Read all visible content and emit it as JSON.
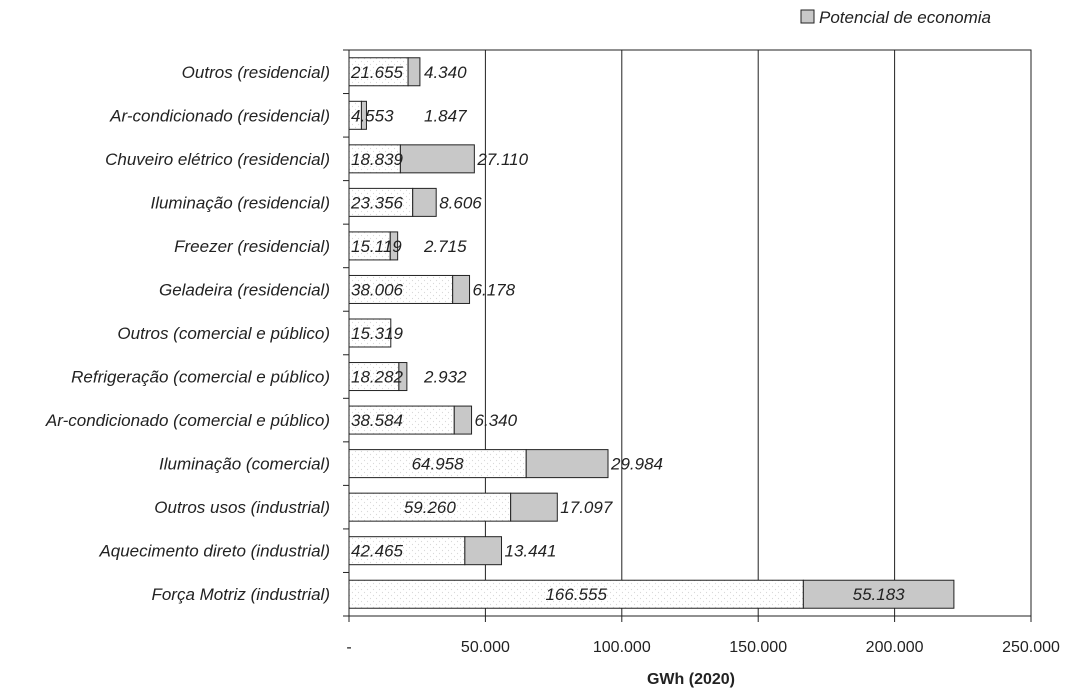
{
  "chart_data": {
    "type": "bar",
    "orientation": "horizontal",
    "stacked": true,
    "title": "",
    "xlabel": "GWh (2020)",
    "ylabel": "",
    "xlim": [
      0,
      250000
    ],
    "x_ticks": [
      0,
      50000,
      100000,
      150000,
      200000,
      250000
    ],
    "x_tick_labels": [
      "-",
      "50.000",
      "100.000",
      "150.000",
      "200.000",
      "250.000"
    ],
    "grid": "vertical major gridlines",
    "legend_position": "top-right",
    "categories": [
      "Outros (residencial)",
      "Ar-condicionado (residencial)",
      "Chuveiro elétrico (residencial)",
      "Iluminação (residencial)",
      "Freezer (residencial)",
      "Geladeira (residencial)",
      "Outros (comercial e público)",
      "Refrigeração (comercial e público)",
      "Ar-condicionado (comercial e público)",
      "Iluminação (comercial)",
      "Outros usos (industrial)",
      "Aquecimento direto (industrial)",
      "Força Motriz (industrial)"
    ],
    "series": [
      {
        "name": "",
        "values": [
          21655,
          4553,
          18839,
          23356,
          15119,
          38006,
          15319,
          18282,
          38584,
          64958,
          59260,
          42465,
          166555
        ],
        "labels": [
          "21.655",
          "4.553",
          "18.839",
          "23.356",
          "15.119",
          "38.006",
          "15.319",
          "18.282",
          "38.584",
          "64.958",
          "59.260",
          "42.465",
          "166.555"
        ],
        "color": "#ffffff"
      },
      {
        "name": "Potencial de economia",
        "values": [
          4340,
          1847,
          27110,
          8606,
          2715,
          6178,
          0,
          2932,
          6340,
          29984,
          17097,
          13441,
          55183
        ],
        "labels": [
          "4.340",
          "1.847",
          "27.110",
          "8.606",
          "2.715",
          "6.178",
          "",
          "2.932",
          "6.340",
          "29.984",
          "17.097",
          "13.441",
          "55.183"
        ],
        "color": "#c8c8c8"
      }
    ]
  }
}
